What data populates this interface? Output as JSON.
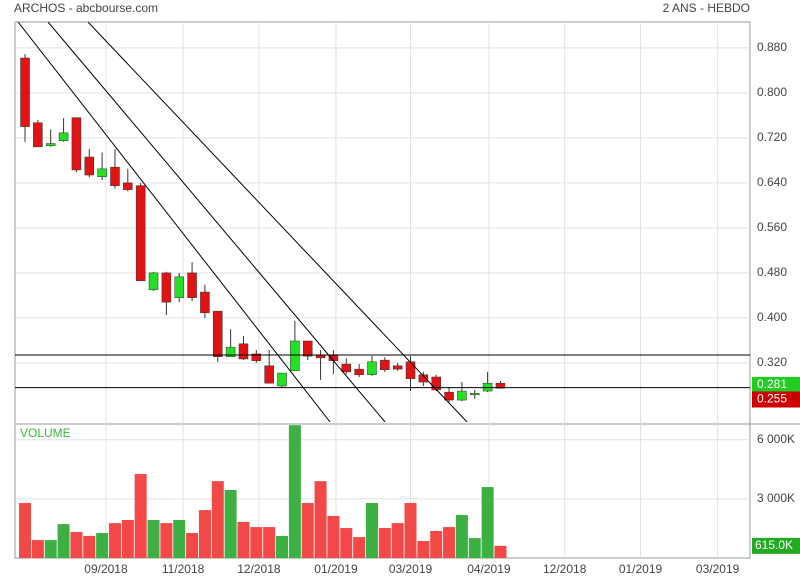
{
  "chart_data": {
    "type": "candlestick",
    "title": "ARCHOS - abcbourse.com",
    "subtitle": "2 ANS - HEBDO",
    "x": [
      0,
      1,
      2,
      3,
      4,
      5,
      6,
      7,
      8,
      9,
      10,
      11,
      12,
      13,
      14,
      15,
      16,
      17,
      18,
      19,
      20,
      21,
      22,
      23,
      24,
      25,
      26,
      27,
      28,
      29,
      30,
      31,
      32,
      33,
      34,
      35,
      36,
      37
    ],
    "open": [
      0.862,
      0.747,
      0.706,
      0.715,
      0.756,
      0.686,
      0.651,
      0.668,
      0.64,
      0.635,
      0.45,
      0.48,
      0.436,
      0.48,
      0.446,
      0.412,
      0.331,
      0.354,
      0.336,
      0.315,
      0.279,
      0.306,
      0.359,
      0.334,
      0.334,
      0.318,
      0.309,
      0.299,
      0.325,
      0.315,
      0.322,
      0.299,
      0.295,
      0.268,
      0.254,
      0.265,
      0.27,
      0.284
    ],
    "high": [
      0.869,
      0.752,
      0.735,
      0.755,
      0.756,
      0.7,
      0.694,
      0.7,
      0.665,
      0.64,
      0.482,
      0.482,
      0.48,
      0.499,
      0.459,
      0.412,
      0.38,
      0.368,
      0.343,
      0.343,
      0.302,
      0.395,
      0.359,
      0.343,
      0.343,
      0.328,
      0.318,
      0.332,
      0.33,
      0.32,
      0.332,
      0.304,
      0.299,
      0.277,
      0.286,
      0.272,
      0.304,
      0.288
    ],
    "low": [
      0.713,
      0.704,
      0.704,
      0.713,
      0.659,
      0.65,
      0.645,
      0.63,
      0.625,
      0.466,
      0.448,
      0.405,
      0.428,
      0.43,
      0.4,
      0.322,
      0.331,
      0.325,
      0.32,
      0.284,
      0.277,
      0.306,
      0.325,
      0.29,
      0.3,
      0.3,
      0.295,
      0.297,
      0.304,
      0.306,
      0.27,
      0.279,
      0.27,
      0.25,
      0.252,
      0.256,
      0.268,
      0.274
    ],
    "close": [
      0.74,
      0.704,
      0.71,
      0.729,
      0.663,
      0.654,
      0.665,
      0.635,
      0.628,
      0.466,
      0.48,
      0.428,
      0.473,
      0.436,
      0.409,
      0.331,
      0.348,
      0.327,
      0.324,
      0.284,
      0.302,
      0.359,
      0.332,
      0.329,
      0.324,
      0.304,
      0.299,
      0.322,
      0.308,
      0.309,
      0.292,
      0.286,
      0.272,
      0.254,
      0.27,
      0.266,
      0.284,
      0.275
    ],
    "up_color": "#22e022",
    "down_color": "#e01414",
    "xlim": [
      -0.78,
      56.42
    ],
    "ylim": [
      0.215,
      0.926
    ],
    "yticks": [
      {
        "value": 0.32,
        "label": "0.320"
      },
      {
        "value": 0.4,
        "label": "0.400"
      },
      {
        "value": 0.48,
        "label": "0.480"
      },
      {
        "value": 0.56,
        "label": "0.560"
      },
      {
        "value": 0.64,
        "label": "0.640"
      },
      {
        "value": 0.72,
        "label": "0.720"
      },
      {
        "value": 0.8,
        "label": "0.800"
      },
      {
        "value": 0.88,
        "label": "0.880"
      }
    ],
    "xticks": [
      {
        "value": 6.3,
        "label": "09/2018"
      },
      {
        "value": 12.3,
        "label": "11/2018"
      },
      {
        "value": 18.2,
        "label": "12/2018"
      },
      {
        "value": 24.2,
        "label": "01/2019"
      },
      {
        "value": 30,
        "label": "03/2019"
      },
      {
        "value": 36.1,
        "label": "04/2019"
      },
      {
        "value": 42,
        "label": "12/2018"
      },
      {
        "value": 47.9,
        "label": "01/2019"
      },
      {
        "value": 53.9,
        "label": "03/2019"
      }
    ],
    "grid": true,
    "hlines": [
      0.334,
      0.276
    ],
    "trendlines": [
      [
        -0.54,
        0.926,
        23.74,
        0.215
      ],
      [
        1.79,
        0.926,
        28.02,
        0.215
      ],
      [
        4.9,
        0.926,
        34.4,
        0.215
      ]
    ],
    "price_labels": [
      {
        "value": 0.281,
        "label": "0.281",
        "color": "#22cc22"
      },
      {
        "value": 0.255,
        "label": "0.255",
        "color": "#cc0000"
      }
    ],
    "volume": {
      "label": "VOLUME",
      "label_color": "#33bb33",
      "values": [
        2790,
        910,
        910,
        1720,
        1320,
        1120,
        1270,
        1770,
        1930,
        4260,
        1930,
        1770,
        1930,
        1270,
        2430,
        3900,
        3450,
        1830,
        1570,
        1570,
        1120,
        6740,
        2790,
        3900,
        2130,
        1520,
        1060,
        2790,
        1520,
        1770,
        2790,
        860,
        1370,
        1570,
        2180,
        1010,
        3600,
        615
      ],
      "up_color": "#3cb043",
      "down_color": "#f24848",
      "ylim": [
        0,
        6800
      ],
      "yticks": [
        {
          "value": 3000,
          "label": "3 000K"
        },
        {
          "value": 6000,
          "label": "6 000K"
        }
      ],
      "last": {
        "value": 615,
        "label": "615.0K",
        "color": "#22aa22"
      }
    }
  }
}
